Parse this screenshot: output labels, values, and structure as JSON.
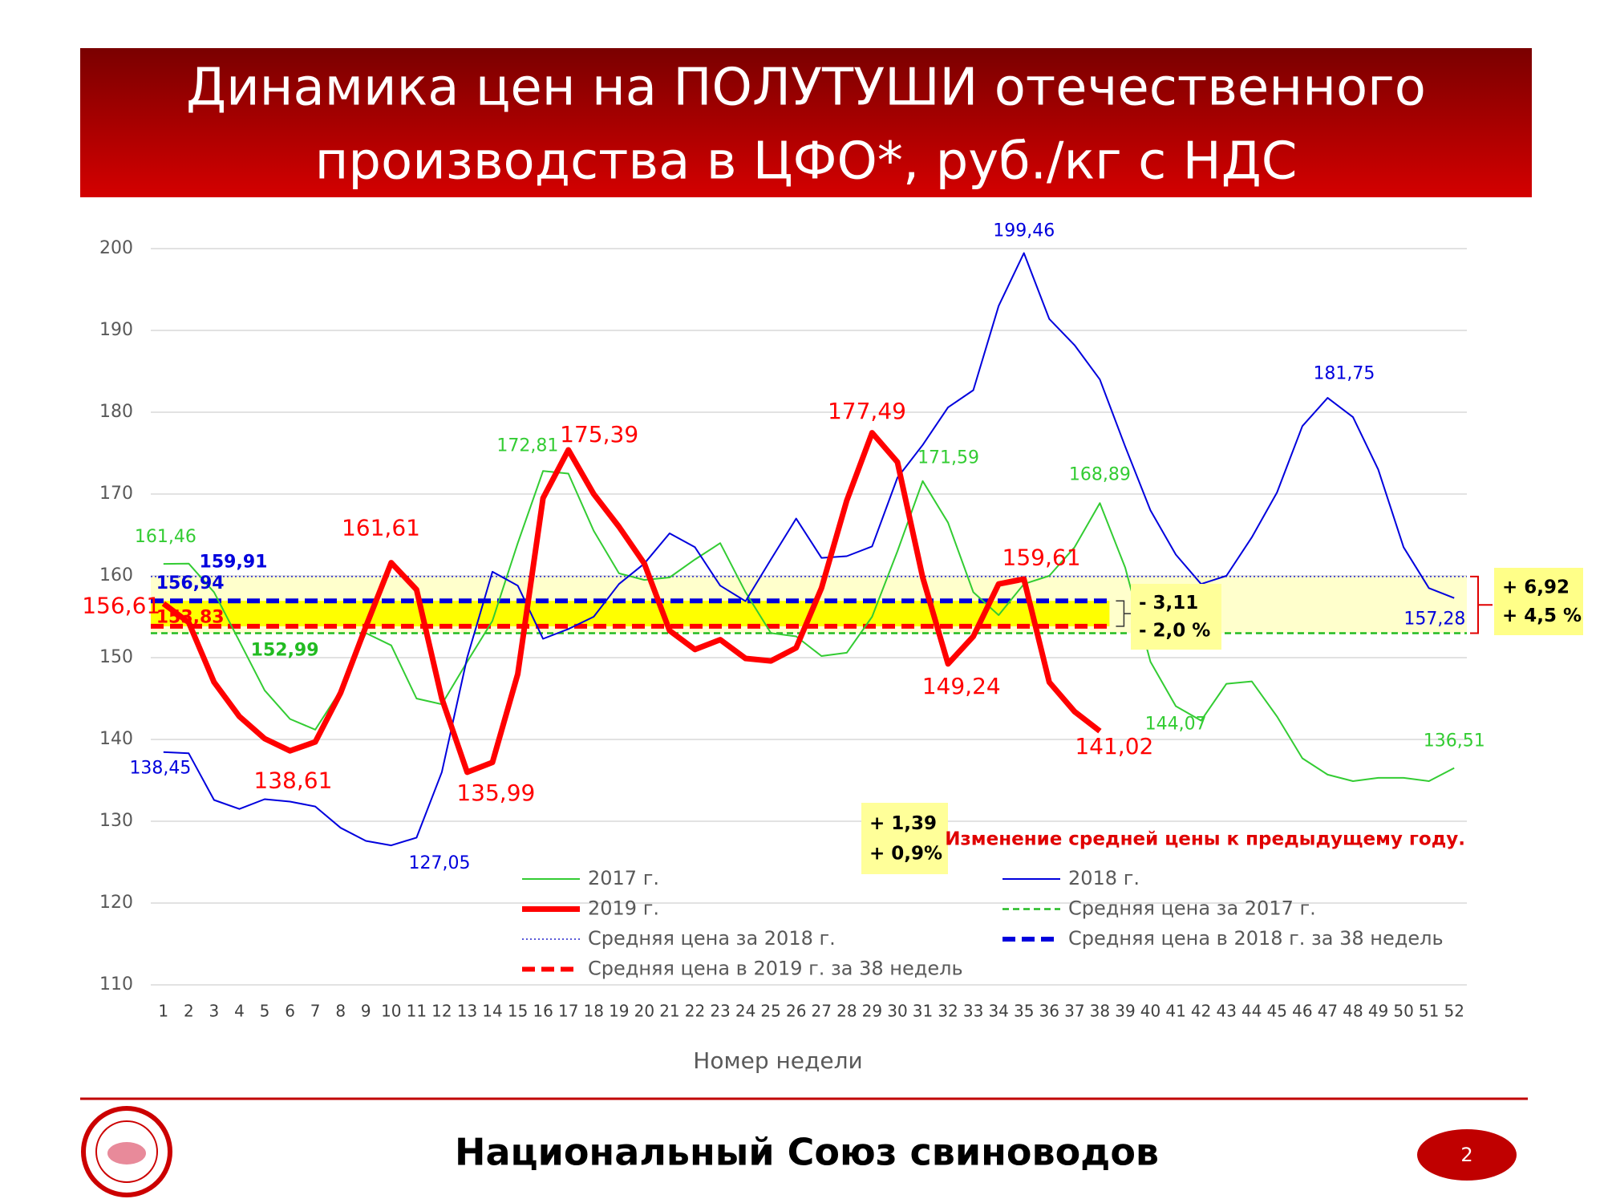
{
  "chart_data": {
    "type": "line",
    "title": [
      "Динамика цен на ПОЛУТУШИ отечественного",
      "производства в ЦФО*, руб./кг с НДС"
    ],
    "x_label": "Номер недели",
    "x": [
      1,
      2,
      3,
      4,
      5,
      6,
      7,
      8,
      9,
      10,
      11,
      12,
      13,
      14,
      15,
      16,
      17,
      18,
      19,
      20,
      21,
      22,
      23,
      24,
      25,
      26,
      27,
      28,
      29,
      30,
      31,
      32,
      33,
      34,
      35,
      36,
      37,
      38,
      39,
      40,
      41,
      42,
      43,
      44,
      45,
      46,
      47,
      48,
      49,
      50,
      51,
      52
    ],
    "xlim": [
      0.5,
      52.5
    ],
    "xticks": [
      1,
      2,
      3,
      4,
      5,
      6,
      7,
      8,
      9,
      10,
      11,
      12,
      13,
      14,
      15,
      16,
      17,
      18,
      19,
      20,
      21,
      22,
      23,
      24,
      25,
      26,
      27,
      28,
      29,
      30,
      31,
      32,
      33,
      34,
      35,
      36,
      37,
      38,
      39,
      40,
      41,
      42,
      43,
      44,
      45,
      46,
      47,
      48,
      49,
      50,
      51,
      52
    ],
    "ylim": [
      110,
      200
    ],
    "yticks": [
      110,
      120,
      130,
      140,
      150,
      160,
      170,
      180,
      190,
      200
    ],
    "grid": true,
    "series": [
      {
        "name": "2017 г.",
        "color": "#33cc33",
        "width": 2,
        "values": [
          161.46,
          161.5,
          158,
          152,
          146,
          142.5,
          141.2,
          146,
          153,
          151.5,
          145,
          144.3,
          149.5,
          154.5,
          164,
          172.81,
          172.5,
          165.5,
          160.3,
          159.5,
          159.8,
          162,
          164,
          158,
          153,
          152.6,
          150.2,
          150.6,
          155,
          163,
          171.59,
          166.5,
          158,
          155.2,
          159,
          160,
          163.5,
          168.89,
          161,
          149.5,
          144.07,
          142.3,
          146.8,
          147.1,
          142.8,
          137.7,
          135.7,
          134.9,
          135.3,
          135.3,
          134.9,
          136.51
        ],
        "value_labels": [
          "161,46",
          null,
          null,
          null,
          null,
          null,
          null,
          null,
          null,
          null,
          null,
          null,
          null,
          null,
          null,
          "172,81",
          null,
          null,
          null,
          null,
          null,
          null,
          null,
          null,
          null,
          null,
          null,
          null,
          null,
          null,
          "171,59",
          null,
          null,
          null,
          null,
          null,
          null,
          "168,89",
          null,
          null,
          "144,07",
          null,
          null,
          null,
          null,
          null,
          null,
          null,
          null,
          null,
          null,
          "136,51"
        ]
      },
      {
        "name": "2018 г.",
        "color": "#0000dd",
        "width": 2,
        "values": [
          138.45,
          138.3,
          132.6,
          131.5,
          132.7,
          132.4,
          131.8,
          129.2,
          127.6,
          127.05,
          128,
          136,
          150,
          160.5,
          158.8,
          152.3,
          153.5,
          155,
          159,
          161.5,
          165.2,
          163.5,
          158.8,
          156.9,
          162,
          167,
          162.2,
          162.4,
          163.6,
          172,
          176,
          180.6,
          182.7,
          193,
          199.46,
          191.4,
          188.2,
          184,
          175.8,
          168,
          162.6,
          159,
          160,
          164.7,
          170.2,
          178.3,
          181.75,
          179.4,
          173,
          163.5,
          158.5,
          157.28
        ],
        "value_labels": [
          "138,45",
          null,
          null,
          null,
          null,
          null,
          null,
          null,
          null,
          "127,05",
          null,
          null,
          null,
          null,
          null,
          null,
          null,
          null,
          null,
          null,
          null,
          null,
          null,
          null,
          null,
          null,
          null,
          null,
          null,
          null,
          null,
          null,
          null,
          null,
          "199,46",
          null,
          null,
          null,
          null,
          null,
          null,
          null,
          null,
          null,
          null,
          null,
          "181,75",
          null,
          null,
          null,
          null,
          "157,28"
        ]
      },
      {
        "name": "2019 г.",
        "color": "#ff0000",
        "width": 7,
        "values": [
          156.61,
          154.3,
          147,
          142.8,
          140.1,
          138.61,
          139.7,
          145.7,
          153.8,
          161.61,
          158.3,
          145,
          135.99,
          137.2,
          148,
          169.5,
          175.39,
          170,
          166,
          161.5,
          153.3,
          151,
          152.2,
          149.9,
          149.6,
          151.2,
          158.5,
          169.2,
          177.49,
          173.9,
          159.8,
          149.24,
          152.6,
          159,
          159.61,
          147,
          143.4,
          141.02,
          null,
          null,
          null,
          null,
          null,
          null,
          null,
          null,
          null,
          null,
          null,
          null,
          null,
          null
        ],
        "value_labels": [
          "156,61",
          null,
          null,
          null,
          null,
          "138,61",
          null,
          null,
          null,
          "161,61",
          null,
          null,
          "135,99",
          null,
          null,
          null,
          "175,39",
          null,
          null,
          null,
          null,
          null,
          null,
          null,
          null,
          null,
          null,
          null,
          "177,49",
          null,
          null,
          "149,24",
          null,
          null,
          "159,61",
          null,
          null,
          "141,02",
          null,
          null,
          null,
          null,
          null,
          null,
          null,
          null,
          null,
          null,
          null,
          null,
          null,
          null
        ]
      }
    ],
    "reference_lines": [
      {
        "name": "Средняя цена за 2017 г.",
        "value": 152.99,
        "value_label": "152,99",
        "color": "#22bb22",
        "style": "dashed"
      },
      {
        "name": "Средняя цена за 2018 г.",
        "value": 159.91,
        "value_label": "159,91",
        "color": "#2222cc",
        "style": "dotted"
      },
      {
        "name": "Средняя цена в 2018 г. за 38 недель",
        "value": 156.94,
        "value_label": "156,94",
        "color": "#0000dd",
        "style": "thick-dashed",
        "x_end": 38
      },
      {
        "name": "Средняя цена в 2019 г. за 38 недель",
        "value": 153.83,
        "value_label": "153,83",
        "color": "#ff0000",
        "style": "thick-dashed",
        "x_end": 38
      }
    ],
    "annotations": [
      {
        "lines": [
          "+ 1,39",
          "+ 0,9%"
        ]
      },
      {
        "lines": [
          "- 3,11",
          "- 2,0 %"
        ]
      },
      {
        "lines": [
          "+ 6,92",
          "+ 4,5 %"
        ]
      }
    ],
    "note": "Изменение средней цены к предыдущему году."
  },
  "footer": {
    "organization": "Национальный Союз свиноводов",
    "page": 2
  }
}
